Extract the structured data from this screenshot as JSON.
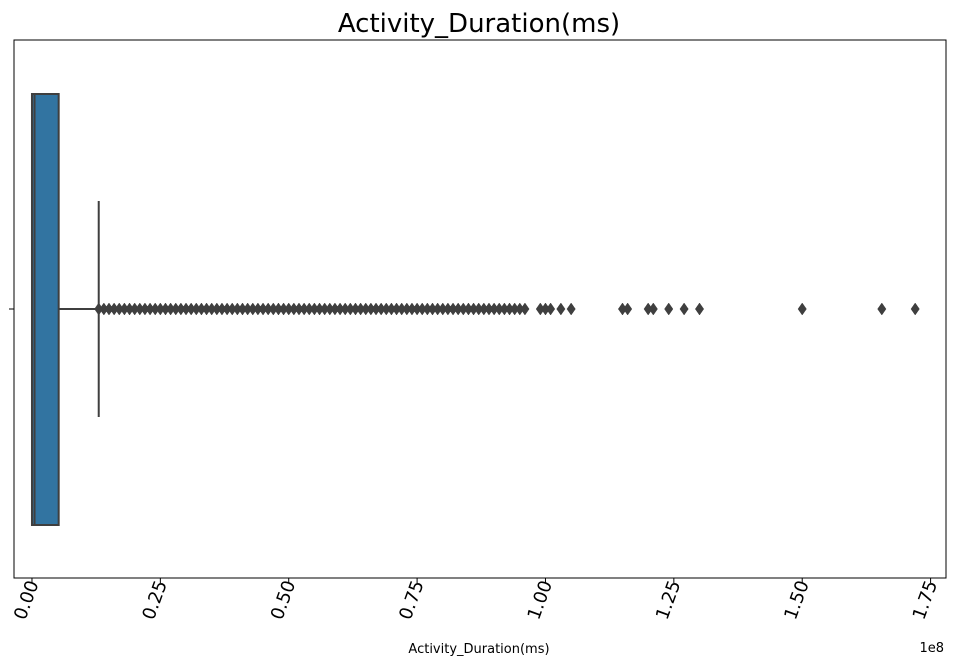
{
  "chart_data": {
    "type": "box",
    "title": "Activity_Duration(ms)",
    "xlabel": "Activity_Duration(ms)",
    "ylabel": "",
    "orientation": "horizontal",
    "x_offset_label": "1e8",
    "xlim": [
      -0.035,
      1.78
    ],
    "xticks": [
      0.0,
      0.25,
      0.5,
      0.75,
      1.0,
      1.25,
      1.5,
      1.75
    ],
    "xtick_labels": [
      "0.00",
      "0.25",
      "0.50",
      "0.75",
      "1.00",
      "1.25",
      "1.50",
      "1.75"
    ],
    "xtick_rotation_deg": 70,
    "grid": false,
    "box": {
      "whisker_low": 0.0,
      "q1": 0.0,
      "median": 0.005,
      "q3": 0.052,
      "whisker_high": 0.13,
      "color": "#3274a1",
      "edge_color": "#3f3f3f"
    },
    "outliers": [
      0.13,
      0.14,
      0.15,
      0.16,
      0.17,
      0.18,
      0.19,
      0.2,
      0.21,
      0.22,
      0.23,
      0.24,
      0.25,
      0.26,
      0.27,
      0.28,
      0.29,
      0.3,
      0.31,
      0.32,
      0.33,
      0.34,
      0.35,
      0.36,
      0.37,
      0.38,
      0.39,
      0.4,
      0.41,
      0.42,
      0.43,
      0.44,
      0.45,
      0.46,
      0.47,
      0.48,
      0.49,
      0.5,
      0.51,
      0.52,
      0.53,
      0.54,
      0.55,
      0.56,
      0.57,
      0.58,
      0.59,
      0.6,
      0.61,
      0.62,
      0.63,
      0.64,
      0.65,
      0.66,
      0.67,
      0.68,
      0.69,
      0.7,
      0.71,
      0.72,
      0.73,
      0.74,
      0.75,
      0.76,
      0.77,
      0.78,
      0.79,
      0.8,
      0.81,
      0.82,
      0.83,
      0.84,
      0.85,
      0.86,
      0.87,
      0.88,
      0.89,
      0.9,
      0.91,
      0.92,
      0.93,
      0.94,
      0.95,
      0.96,
      0.99,
      1.0,
      1.01,
      1.03,
      1.05,
      1.15,
      1.16,
      1.2,
      1.21,
      1.24,
      1.27,
      1.3,
      1.5,
      1.655,
      1.72
    ],
    "outlier_color": "#3f3f3f"
  }
}
